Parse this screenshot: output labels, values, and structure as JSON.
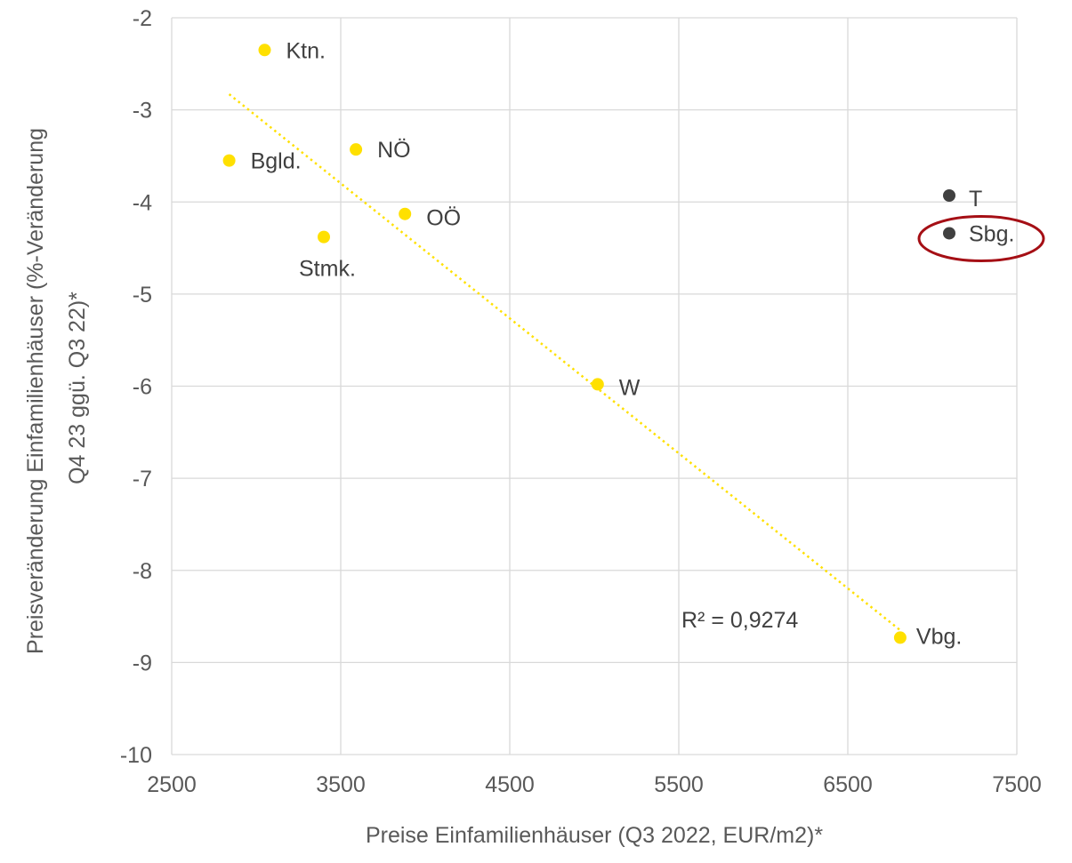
{
  "chart_data": {
    "type": "scatter",
    "xlabel": "Preise Einfamilienhäuser (Q3 2022, EUR/m2)*",
    "ylabel_lines": [
      "Preisveränderung Einfamilienhäuser (%-Veränderung",
      "Q4 23 ggü. Q3 22)*"
    ],
    "xlim": [
      2500,
      7500
    ],
    "ylim": [
      -10,
      -2
    ],
    "x_ticks": [
      "2500",
      "3500",
      "4500",
      "5500",
      "6500",
      "7500"
    ],
    "y_ticks": [
      "-2",
      "-3",
      "-4",
      "-5",
      "-6",
      "-7",
      "-8",
      "-9",
      "-10"
    ],
    "grid": true,
    "series": [
      {
        "color": "#FFE000",
        "points": [
          {
            "label": "Ktn.",
            "x": 3050,
            "y": -2.35
          },
          {
            "label": "Bgld.",
            "x": 2840,
            "y": -3.55
          },
          {
            "label": "NÖ",
            "x": 3590,
            "y": -3.43
          },
          {
            "label": "OÖ",
            "x": 3880,
            "y": -4.13
          },
          {
            "label": "Stmk.",
            "x": 3400,
            "y": -4.38
          },
          {
            "label": "W",
            "x": 5020,
            "y": -5.98
          },
          {
            "label": "Vbg.",
            "x": 6810,
            "y": -8.73
          }
        ]
      },
      {
        "color": "#404040",
        "points": [
          {
            "label": "T",
            "x": 7100,
            "y": -3.93
          },
          {
            "label": "Sbg.",
            "x": 7100,
            "y": -4.34
          }
        ]
      }
    ],
    "trendline": {
      "color": "#FFE000",
      "style": "dotted",
      "x": [
        2840,
        6810
      ],
      "y": [
        -2.83,
        -8.65
      ],
      "r2_label": "R² = 0,9274"
    },
    "highlight": {
      "target": "Sbg.",
      "shape": "ellipse",
      "color": "#A50F15"
    }
  }
}
